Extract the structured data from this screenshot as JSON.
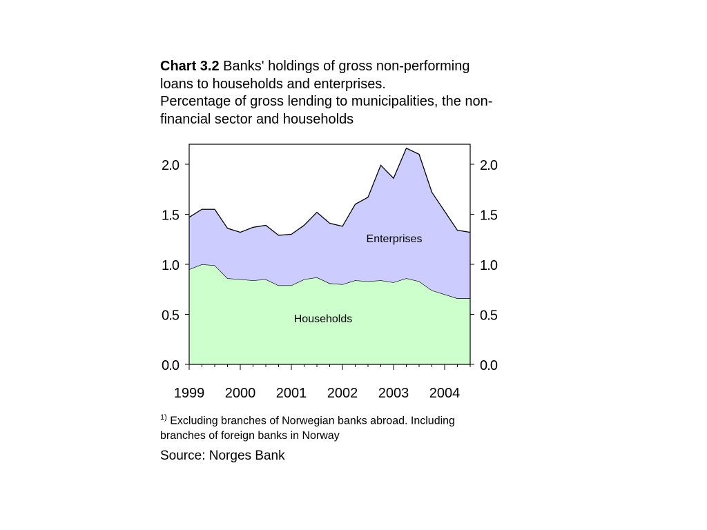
{
  "chart_data": {
    "type": "area",
    "stacked": true,
    "title_bold": "Chart 3.2",
    "title": "Banks' holdings of gross non-performing loans to households and enterprises.",
    "subtitle": "Percentage of gross lending to municipalities, the non-financial sector and households",
    "x": [
      1999.0,
      1999.25,
      1999.5,
      1999.75,
      2000.0,
      2000.25,
      2000.5,
      2000.75,
      2001.0,
      2001.25,
      2001.5,
      2001.75,
      2002.0,
      2002.25,
      2002.5,
      2002.75,
      2003.0,
      2003.25,
      2003.5,
      2003.75,
      2004.0,
      2004.25,
      2004.5
    ],
    "series": [
      {
        "name": "Households",
        "color": "#ccffcc",
        "values": [
          0.95,
          1.0,
          0.99,
          0.86,
          0.85,
          0.84,
          0.85,
          0.79,
          0.79,
          0.85,
          0.87,
          0.81,
          0.8,
          0.84,
          0.83,
          0.84,
          0.82,
          0.86,
          0.83,
          0.74,
          0.7,
          0.66,
          0.66
        ]
      },
      {
        "name": "Enterprises",
        "color": "#ccccff",
        "values": [
          0.52,
          0.55,
          0.56,
          0.5,
          0.47,
          0.53,
          0.54,
          0.5,
          0.51,
          0.54,
          0.65,
          0.6,
          0.58,
          0.76,
          0.84,
          1.15,
          1.04,
          1.3,
          1.27,
          0.98,
          0.83,
          0.68,
          0.66
        ]
      }
    ],
    "xticks": [
      "1999",
      "2000",
      "2001",
      "2002",
      "2003",
      "2004"
    ],
    "yticks": [
      "0.0",
      "0.5",
      "1.0",
      "1.5",
      "2.0"
    ],
    "ylim": [
      0,
      2.2
    ],
    "xlim": [
      1999,
      2004.5
    ],
    "labels": {
      "households": "Households",
      "enterprises": "Enterprises"
    }
  },
  "footnote_marker": "1)",
  "footnote": "Excluding branches of Norwegian banks abroad. Including branches of foreign banks in Norway",
  "source": "Source: Norges Bank"
}
